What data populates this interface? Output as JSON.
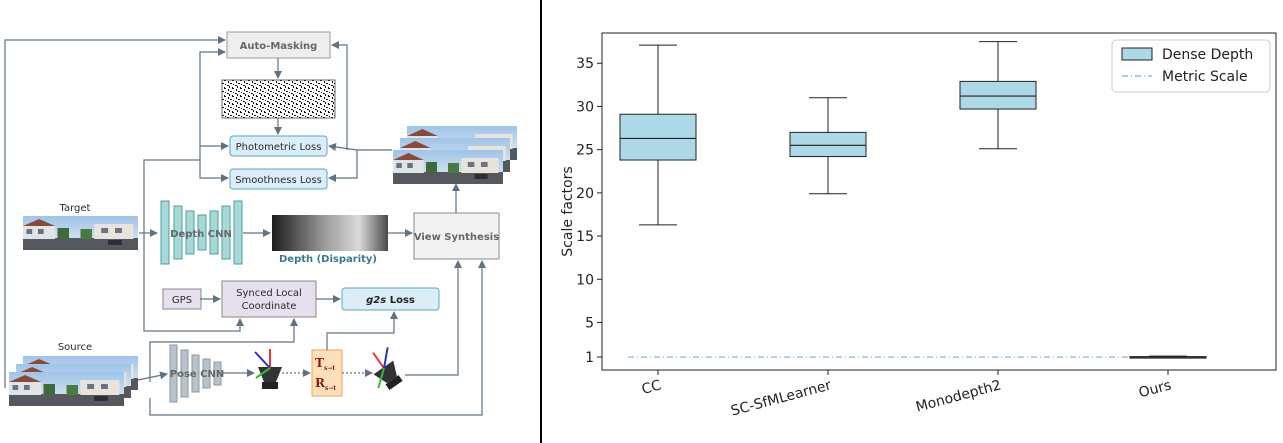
{
  "diagram": {
    "auto_masking": "Auto-Masking",
    "photometric_loss": "Photometric Loss",
    "smoothness_loss": "Smoothness Loss",
    "target": "Target",
    "source": "Source",
    "depth_cnn": "Depth CNN",
    "depth_caption": "Depth (Disparity)",
    "view_synthesis": "View Synthesis",
    "gps": "GPS",
    "synced_line1": "Synced Local",
    "synced_line2": "Coordinate",
    "g2s_bold": "g2s",
    "g2s_rest": " Loss",
    "pose_cnn": "Pose CNN",
    "t_label": "T",
    "t_sub": "s→t",
    "r_label": "R",
    "r_sub": "s→t",
    "colors": {
      "loss_box": "#dbeef8",
      "loss_border": "#5aa4c8",
      "cnn_teal": "#a8d8d8",
      "cnn_teal_border": "#4aa0a0",
      "pose_gray": "#b8c2ca",
      "gps_box": "#e6e0ee",
      "pose_mat": "#fde0b8",
      "arrow": "#5f7385"
    }
  },
  "chart_data": {
    "type": "box",
    "categories": [
      "CC",
      "SC-SfMLearner",
      "Monodepth2",
      "Ours"
    ],
    "boxes": [
      {
        "whislo": 16.3,
        "q1": 23.8,
        "med": 26.3,
        "q3": 29.1,
        "whishi": 37.1
      },
      {
        "whislo": 19.9,
        "q1": 24.2,
        "med": 25.5,
        "q3": 27.0,
        "whishi": 31.0
      },
      {
        "whislo": 25.1,
        "q1": 29.7,
        "med": 31.2,
        "q3": 32.9,
        "whishi": 37.5
      },
      {
        "whislo": 0.95,
        "q1": 1.0,
        "med": 1.0,
        "q3": 1.05,
        "whishi": 1.1
      }
    ],
    "metric_scale": 1,
    "ylabel": "Scale factors",
    "ylim": [
      -0.5,
      38.5
    ],
    "yticks": [
      1,
      5,
      10,
      15,
      20,
      25,
      30,
      35
    ],
    "legend": {
      "position": "top-right",
      "entries": [
        "Dense Depth",
        "Metric Scale"
      ]
    },
    "colors": {
      "box_fill": "#add8e6",
      "edge": "#222222",
      "metric_line": "#7aaed6"
    }
  }
}
